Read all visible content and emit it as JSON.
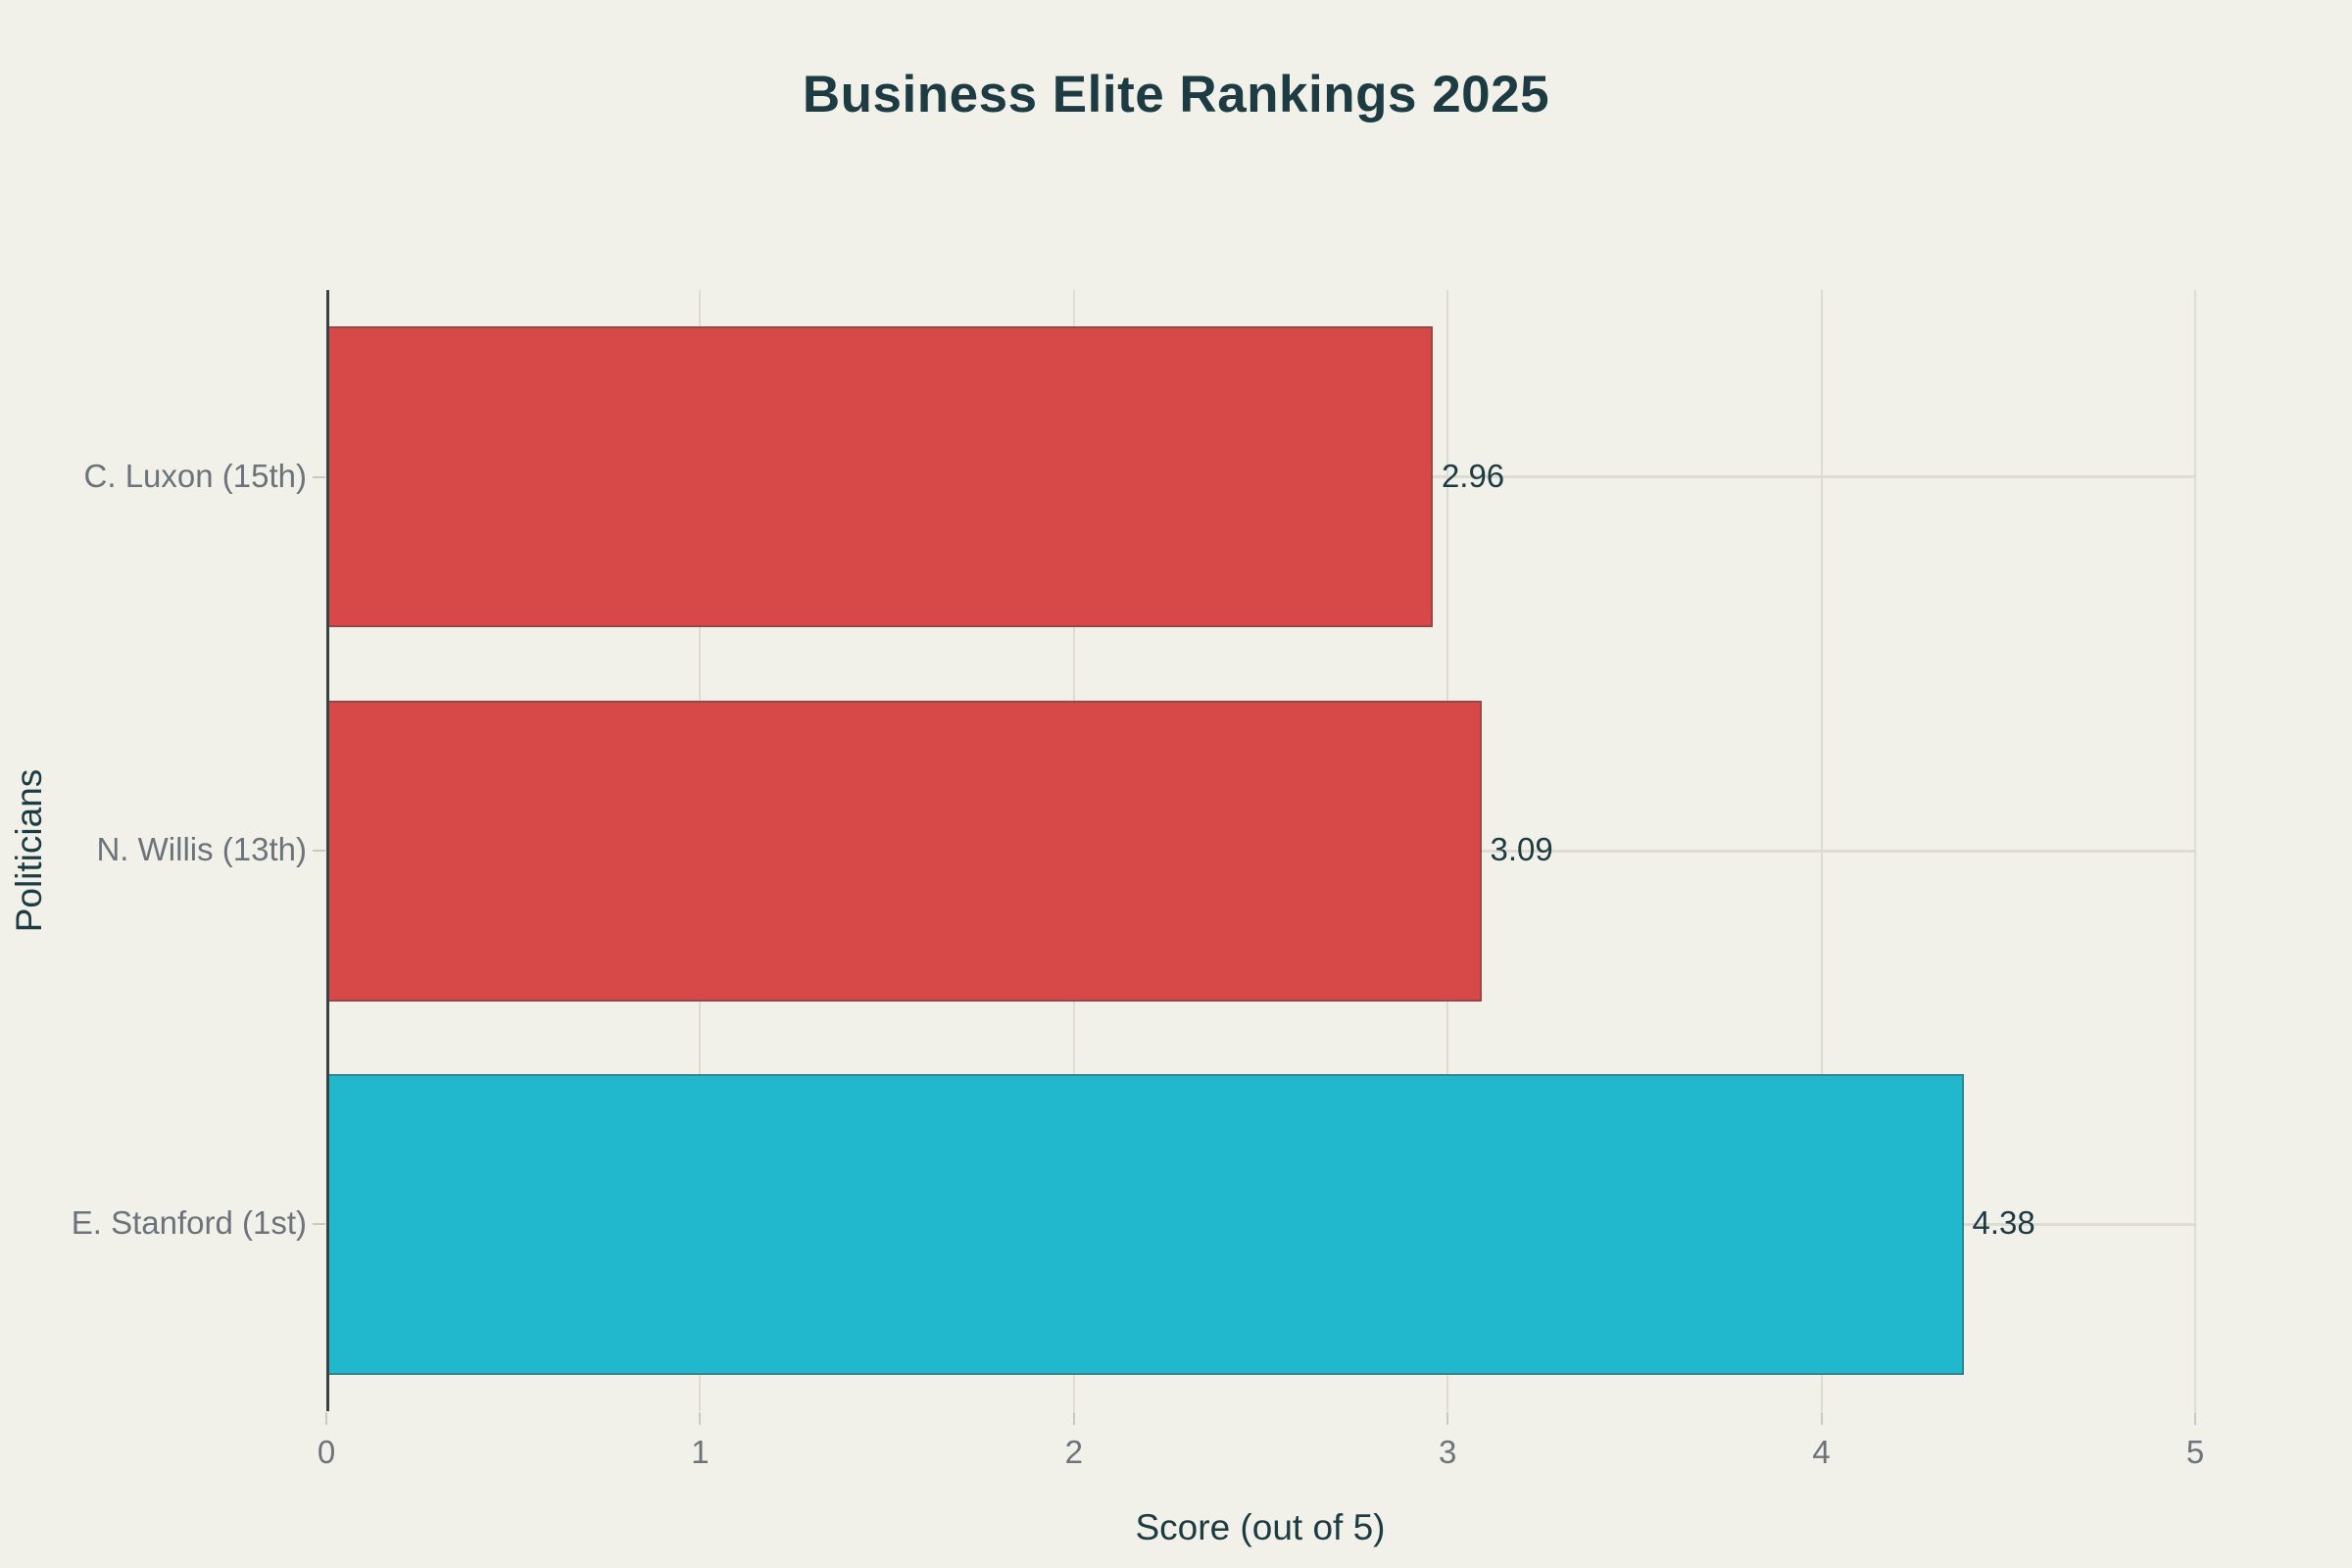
{
  "chart_data": {
    "type": "bar",
    "orientation": "horizontal",
    "title": "Business Elite Rankings 2025",
    "xlabel": "Score (out of 5)",
    "ylabel": "Politicians",
    "categories": [
      "C. Luxon (15th)",
      "N. Willis (13th)",
      "E. Stanford (1st)"
    ],
    "values": [
      2.96,
      3.09,
      4.38
    ],
    "value_labels": [
      "2.96",
      "3.09",
      "4.38"
    ],
    "bar_colors": [
      "#d74848",
      "#d74848",
      "#21b7cd"
    ],
    "xlim": [
      0,
      5
    ],
    "xticks": [
      "0",
      "1",
      "2",
      "3",
      "4",
      "5"
    ],
    "grid": true,
    "legend": false,
    "layout_hints": {
      "bars_top_to_bottom": true,
      "value_labels_outside_right": true,
      "gridlines": "vertical at integer ticks, horizontal at row centers"
    }
  },
  "colors": {
    "background": "#f2f1e9",
    "title_text": "#1d3b43",
    "axis_text": "#6b737b",
    "value_text": "#1d3b43",
    "gridline": "#dedbd3",
    "axis_line": "#3a4142",
    "bar_red": "#d74848",
    "bar_teal": "#21b7cd"
  }
}
